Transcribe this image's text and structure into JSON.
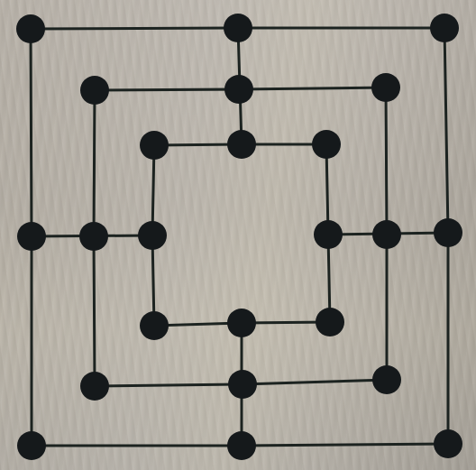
{
  "game": {
    "name_shown": "",
    "board": {
      "type": "nine-mens-morris",
      "rings": 3,
      "points_per_ring": 8,
      "total_points": 24,
      "line_color": "#1c2320",
      "point_color": "#15191b",
      "background_color": "#b7b2aa"
    }
  }
}
